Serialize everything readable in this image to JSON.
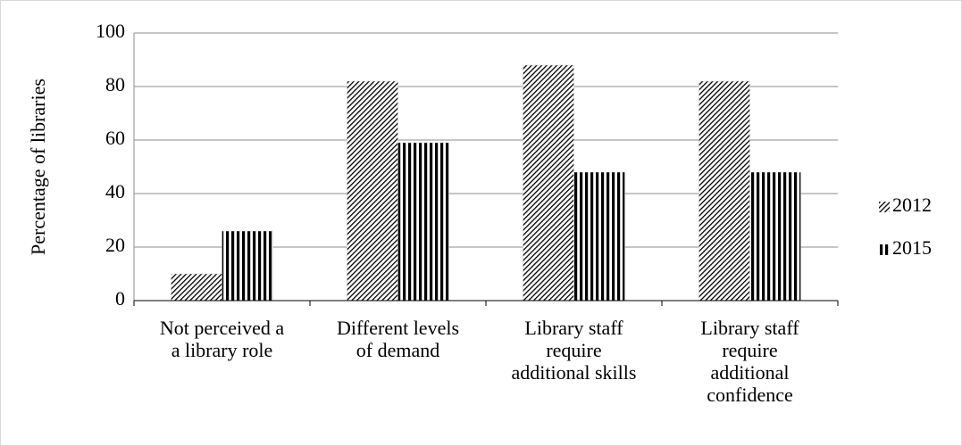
{
  "chart_data": {
    "type": "bar",
    "y_label": "Percentage of libraries",
    "categories": [
      "Not perceived a\na library role",
      "Different levels\nof demand",
      "Library staff\nrequire\nadditional skills",
      "Library staff\nrequire\nadditional\nconfidence"
    ],
    "series": [
      {
        "name": "2012",
        "color": "#000000",
        "pattern": "diagonal",
        "values": [
          10,
          82,
          88,
          82
        ]
      },
      {
        "name": "2015",
        "color": "#000000",
        "pattern": "vertical",
        "values": [
          26,
          59,
          48,
          48
        ]
      }
    ],
    "ylim": [
      0,
      100
    ],
    "yticks": [
      0,
      20,
      40,
      60,
      80,
      100
    ],
    "grid": true,
    "legend": "right"
  }
}
